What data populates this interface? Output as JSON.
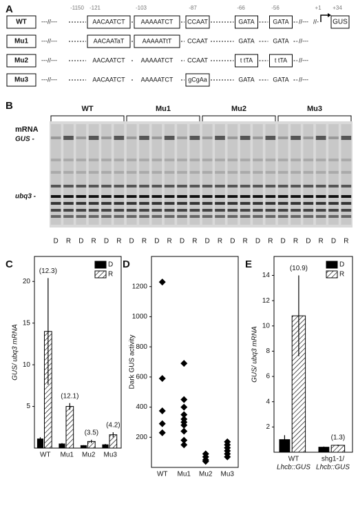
{
  "panel_a": {
    "label": "A",
    "positions": [
      "-1150",
      "-121",
      "-103",
      "-87",
      "-66",
      "-56",
      "+1",
      "+34"
    ],
    "reporter": "GUS",
    "rows": [
      {
        "name": "WT",
        "elements": [
          "AACAATCT",
          "AAAAATCT",
          "CCAAT",
          "GATA",
          "GATA"
        ],
        "boxed": [
          true,
          true,
          true,
          true,
          true
        ]
      },
      {
        "name": "Mu1",
        "elements": [
          "AACAATaT",
          "AAAAATtT",
          "CCAAT",
          "GATA",
          "GATA"
        ],
        "boxed": [
          true,
          true,
          false,
          false,
          false
        ]
      },
      {
        "name": "Mu2",
        "elements": [
          "AACAATCT",
          "AAAAATCT",
          "CCAAT",
          "t tTA",
          "t tTA"
        ],
        "boxed": [
          false,
          false,
          false,
          true,
          true
        ]
      },
      {
        "name": "Mu3",
        "elements": [
          "AACAATCT",
          "AAAAATCT",
          "gCgAa",
          "GATA",
          "GATA"
        ],
        "boxed": [
          false,
          false,
          true,
          false,
          false
        ]
      }
    ]
  },
  "panel_b": {
    "label": "B",
    "groups": [
      "WT",
      "Mu1",
      "Mu2",
      "Mu3"
    ],
    "header": "mRNA",
    "bands": [
      "GUS -",
      "ubq3 -"
    ],
    "lanes": [
      "D",
      "R",
      "D",
      "R",
      "D",
      "R",
      "D",
      "R",
      "D",
      "R",
      "D",
      "R",
      "D",
      "R",
      "D",
      "R",
      "D",
      "R",
      "D",
      "R",
      "D",
      "R",
      "D",
      "R"
    ]
  },
  "chart_data": [
    {
      "type": "bar",
      "panel": "C",
      "ylabel": "GUS/ ubq3 mRNA",
      "categories": [
        "WT",
        "Mu1",
        "Mu2",
        "Mu3"
      ],
      "series": [
        {
          "name": "D",
          "color": "#000000",
          "values": [
            1.1,
            0.5,
            0.3,
            0.4
          ],
          "errors": [
            0.2,
            0.1,
            0.05,
            0.1
          ]
        },
        {
          "name": "R",
          "color": "#ffffff",
          "pattern": "hatch",
          "values": [
            14,
            5,
            0.8,
            1.6
          ],
          "errors": [
            6.4,
            0.4,
            0.2,
            0.3
          ]
        }
      ],
      "annotations": [
        "(12.3)",
        "(12.1)",
        "(3.5)",
        "(4.2)"
      ],
      "ylim": [
        0,
        23
      ],
      "yticks": [
        5,
        10,
        15,
        20
      ],
      "legend": "upper right"
    },
    {
      "type": "strip",
      "panel": "D",
      "ylabel": "Dark GUS activity",
      "categories": [
        "WT",
        "Mu1",
        "Mu2",
        "Mu3"
      ],
      "values": [
        [
          1230,
          590,
          375,
          290,
          230
        ],
        [
          690,
          450,
          400,
          350,
          320,
          300,
          280,
          240,
          180,
          150
        ],
        [
          90,
          70,
          50,
          40
        ],
        [
          170,
          150,
          130,
          110,
          90,
          70
        ]
      ],
      "color": "#000000",
      "ylim": [
        0,
        1400
      ],
      "yticks": [
        200,
        400,
        600,
        800,
        1000,
        1200
      ]
    },
    {
      "type": "bar",
      "panel": "E",
      "ylabel": "GUS/ ubq3 mRNA",
      "categories": [
        [
          "WT",
          "Lhcb::GUS"
        ],
        [
          "shg1-1/",
          "Lhcb::GUS"
        ]
      ],
      "series": [
        {
          "name": "D",
          "color": "#000000",
          "values": [
            1.0,
            0.4
          ],
          "errors": [
            0.35,
            0.05
          ]
        },
        {
          "name": "R",
          "color": "#ffffff",
          "pattern": "hatch",
          "values": [
            10.8,
            0.55
          ],
          "errors": [
            3.2,
            0.05
          ]
        }
      ],
      "annotations": [
        "(10.9)",
        "(1.3)"
      ],
      "ylim": [
        0,
        15.5
      ],
      "yticks": [
        2,
        4,
        6,
        8,
        10,
        12,
        14
      ],
      "legend": "upper right"
    }
  ]
}
